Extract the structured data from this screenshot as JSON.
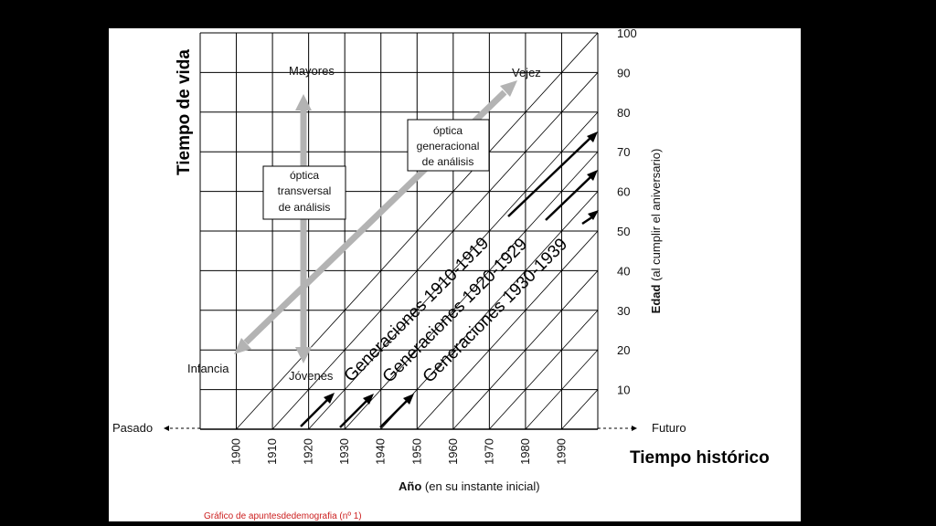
{
  "axes": {
    "y_left_title": "Tiempo de vida",
    "y_right_title_bold": "Edad",
    "y_right_title_rest": " (al cumplir el aniversario)",
    "x_title_bold": "Año",
    "x_title_rest": " (en su instante inicial)",
    "x_big_title": "Tiempo histórico",
    "past_label": "Pasado",
    "future_label": "Futuro",
    "age_ticks": [
      "10",
      "20",
      "30",
      "40",
      "50",
      "60",
      "70",
      "80",
      "90",
      "100"
    ],
    "year_ticks": [
      "1900",
      "1910",
      "1920",
      "1930",
      "1940",
      "1950",
      "1960",
      "1970",
      "1980",
      "1990"
    ]
  },
  "labels": {
    "mayores": "Mayores",
    "vejez": "Vejez",
    "infancia": "Infancia",
    "jovenes": "Jóvenes"
  },
  "boxes": {
    "transversal": [
      "óptica",
      "transversal",
      "de análisis"
    ],
    "generacional": [
      "óptica",
      "generacional",
      "de análisis"
    ]
  },
  "generations": [
    "Generaciones 1910-1919",
    "Generaciones 1920-1929",
    "Generaciones 1930-1939"
  ],
  "credit": "Gráfico de apuntesdedemografia (nº 1)",
  "colors": {
    "background": "#000000",
    "slide": "#ffffff",
    "grid": "#000000",
    "optic_arrow": "#b3b3b3",
    "credit": "#cc1f1f"
  }
}
